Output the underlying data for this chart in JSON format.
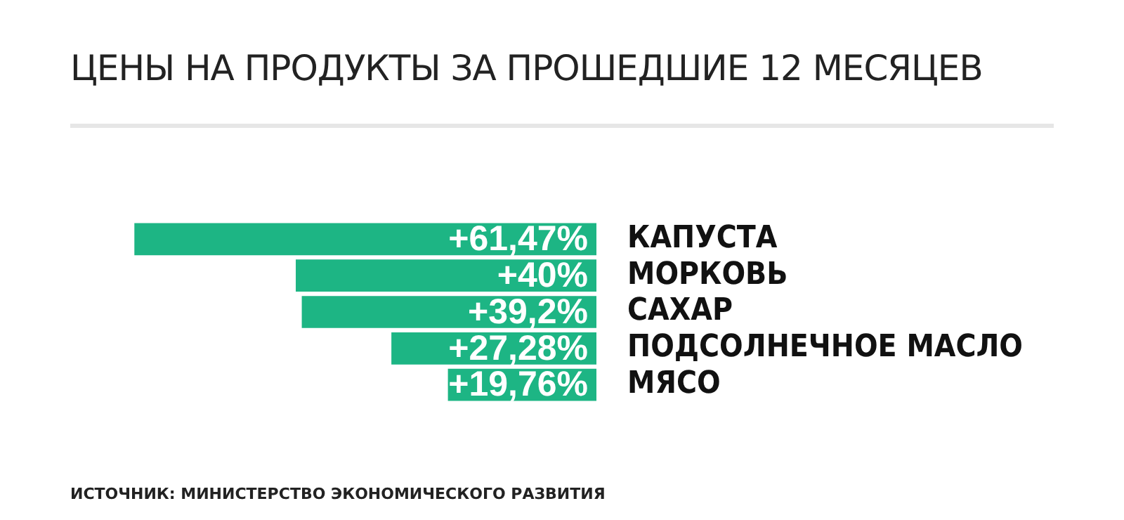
{
  "chart_data": {
    "type": "bar",
    "orientation": "horizontal",
    "title": "ЦЕНЫ НА ПРОДУКТЫ ЗА ПРОШЕДШИЕ 12 МЕСЯЦЕВ",
    "categories": [
      "КАПУСТА",
      "МОРКОВЬ",
      "САХАР",
      "ПОДСОЛНЕЧНОЕ МАСЛО",
      "МЯСО"
    ],
    "values": [
      61.47,
      40,
      39.2,
      27.28,
      19.76
    ],
    "value_labels": [
      "+61,47%",
      "+40%",
      "+39,2%",
      "+27,28%",
      "+19,76%"
    ],
    "color": "#1db584",
    "tick_labels": "y",
    "grid": false,
    "legend": false,
    "annotations": [
      "ИСТОЧНИК: МИНИСТЕРСТВО ЭКОНОМИЧЕСКОГО РАЗВИТИЯ"
    ]
  }
}
